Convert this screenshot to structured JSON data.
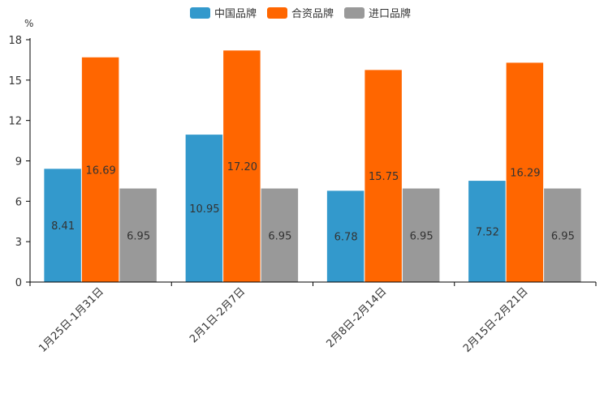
{
  "chart_data": {
    "type": "bar",
    "unit": "%",
    "categories": [
      "1月25日-1月31日",
      "2月1日-2月7日",
      "2月8日-2月14日",
      "2月15日-2月21日"
    ],
    "series": [
      {
        "name": "中国品牌",
        "color": "#3399CC",
        "values": [
          8.41,
          10.95,
          6.78,
          7.52
        ],
        "labels": [
          "8.41",
          "10.95",
          "6.78",
          "7.52"
        ]
      },
      {
        "name": "合资品牌",
        "color": "#FF6600",
        "values": [
          16.69,
          17.2,
          15.75,
          16.29
        ],
        "labels": [
          "16.69",
          "17.20",
          "15.75",
          "16.29"
        ]
      },
      {
        "name": "进口品牌",
        "color": "#999999",
        "values": [
          6.95,
          6.95,
          6.95,
          6.95
        ],
        "labels": [
          "6.95",
          "6.95",
          "6.95",
          "6.95"
        ]
      }
    ],
    "yticks": [
      0,
      3,
      6,
      9,
      12,
      15,
      18
    ],
    "ylim": [
      0,
      18
    ],
    "legend_position": "top-center",
    "grid": false
  }
}
